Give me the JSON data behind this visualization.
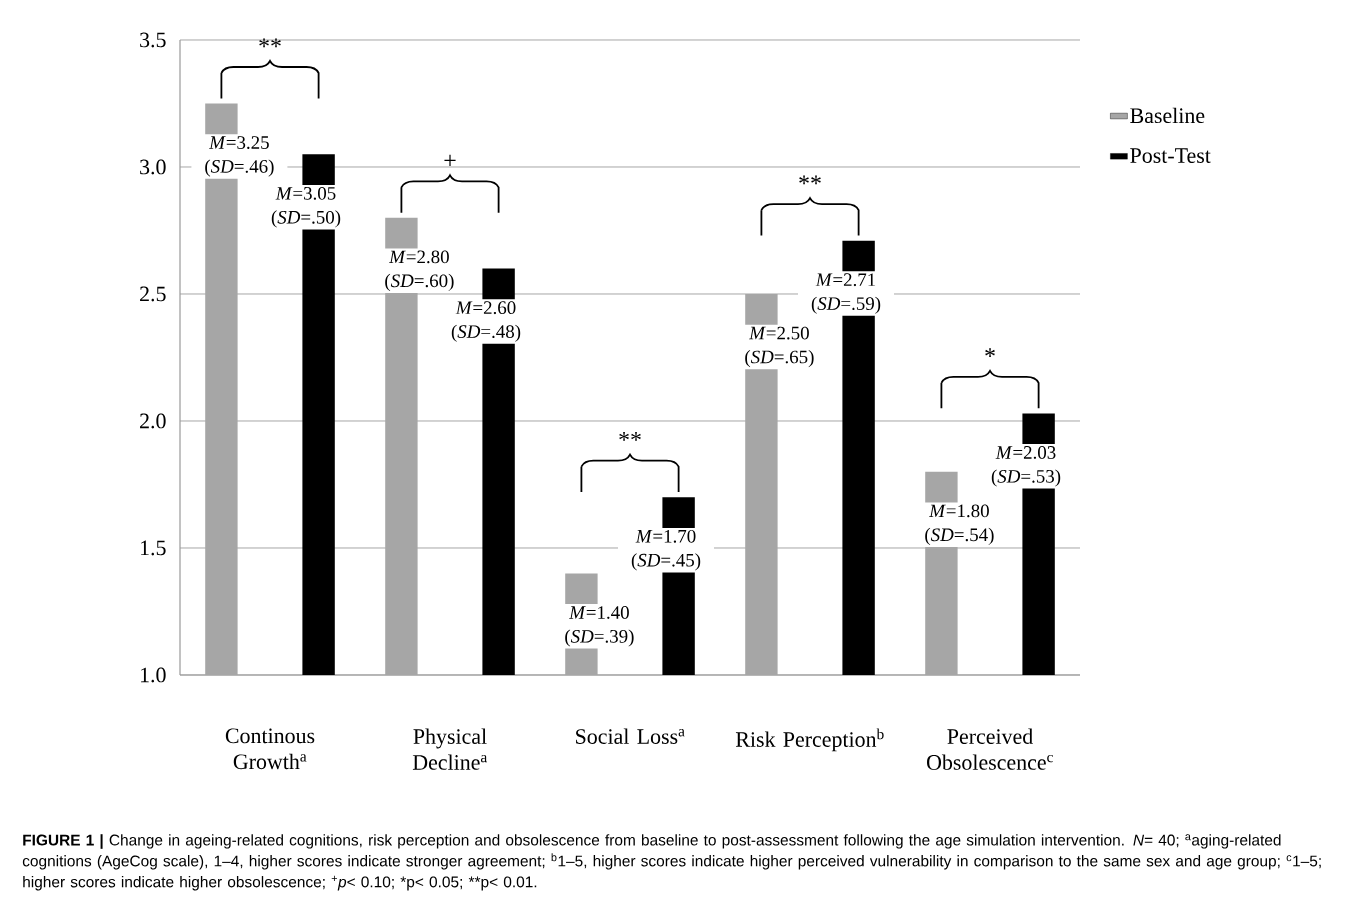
{
  "chart_data": {
    "type": "bar",
    "categories": [
      "Continous Growth$^{a}$",
      "Physical Decline$^{a}$",
      "Social Loss$^{a}$",
      "Risk Perception$^{b}$",
      "Perceived Obsolescence$^{c}$"
    ],
    "series": [
      {
        "name": "Baseline",
        "color": "#a6a6a6",
        "values": [
          3.25,
          2.8,
          1.4,
          2.5,
          1.8
        ],
        "value_labels": [
          "*M*=3.25 (*SD*=.46)",
          "*M*=2.80 (*SD*=.60)",
          "*M*=1.40 (*SD*=.39)",
          "*M*=2.50 (*SD*=.65)",
          "*M*=1.80 (*SD*=.54)"
        ]
      },
      {
        "name": "Post-Test",
        "color": "#000000",
        "values": [
          3.05,
          2.6,
          1.7,
          2.71,
          2.03
        ],
        "value_labels": [
          "*M*=3.05 (*SD*=.50)",
          "*M*=2.60 (*SD*=.48)",
          "*M*=1.70 (*SD*=.45)",
          "*M*=2.71 (*SD*=.59)",
          "*M*=2.03 (*SD*=.53)"
        ]
      }
    ],
    "ylim": [
      1,
      3.5
    ],
    "yticks": [
      {
        "value": 1,
        "label": "1.0"
      },
      {
        "value": 1.5,
        "label": "1.5"
      },
      {
        "value": 2,
        "label": "2.0"
      },
      {
        "value": 2.5,
        "label": "2.5"
      },
      {
        "value": 3,
        "label": "3.0"
      },
      {
        "value": 3.5,
        "label": "3.5"
      }
    ],
    "grid": "y",
    "legend": "right",
    "annotations": [
      "**",
      "+",
      "**",
      "**",
      "*",
      "**FIGURE 1 |** Change in ageing-related cognitions, risk perception and obsolescence from baseline to post-assessment following the age simulation intervention. *N*= 40; $^{a}$aging-related cognitions (AgeCog scale), 1–4, higher scores indicate stronger agreement; $^{b}$1–5, higher scores indicate higher perceived vulnerability in comparison to the same sex and age group; $^{c}$1–5; higher scores indicate higher obsolescence; $^{+}$*p*< 0.10; *p< 0.05; **p< 0.01."
    ]
  }
}
